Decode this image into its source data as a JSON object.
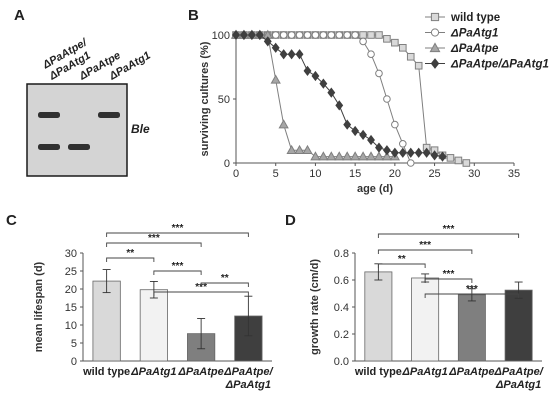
{
  "panels": {
    "A": {
      "letter": "A",
      "lane_labels": [
        {
          "lines": [
            "ΔPaAtpe/",
            "ΔPaAtg1"
          ]
        },
        {
          "lines": [
            "ΔPaAtpe"
          ]
        },
        {
          "lines": [
            "ΔPaAtg1"
          ]
        }
      ],
      "gel_label": "Ble",
      "bands": [
        {
          "lane": 0,
          "level": "upper"
        },
        {
          "lane": 0,
          "level": "lower"
        },
        {
          "lane": 1,
          "level": "lower"
        },
        {
          "lane": 2,
          "level": "upper"
        }
      ]
    },
    "B": {
      "letter": "B"
    },
    "C": {
      "letter": "C"
    },
    "D": {
      "letter": "D"
    }
  },
  "chart_data": [
    {
      "panel": "B",
      "type": "line",
      "xlabel": "age (d)",
      "ylabel": "surviving cultures (%)",
      "xlim": [
        0,
        35
      ],
      "ylim": [
        0,
        100
      ],
      "xticks": [
        0,
        5,
        10,
        15,
        20,
        25,
        30,
        35
      ],
      "yticks": [
        0,
        50,
        100
      ],
      "legend_position": "right",
      "series": [
        {
          "name": "wild type",
          "marker": "square",
          "color": "#7f7f7f",
          "fill": "#d9d9d9",
          "x": [
            0,
            1,
            2,
            3,
            4,
            5,
            6,
            7,
            8,
            9,
            10,
            11,
            12,
            13,
            14,
            15,
            16,
            17,
            18,
            19,
            20,
            21,
            22,
            23,
            24,
            25,
            26,
            27,
            28,
            29
          ],
          "y": [
            100,
            100,
            100,
            100,
            100,
            100,
            100,
            100,
            100,
            100,
            100,
            100,
            100,
            100,
            100,
            100,
            100,
            100,
            100,
            97,
            94,
            90,
            83,
            76,
            12,
            10,
            6,
            4,
            2,
            0
          ]
        },
        {
          "name": "ΔPaAtg1",
          "marker": "circle",
          "color": "#7f7f7f",
          "fill": "#ffffff",
          "x": [
            0,
            1,
            2,
            3,
            4,
            5,
            6,
            7,
            8,
            9,
            10,
            11,
            12,
            13,
            14,
            15,
            16,
            17,
            18,
            19,
            20,
            21,
            22
          ],
          "y": [
            100,
            100,
            100,
            100,
            100,
            100,
            100,
            100,
            100,
            100,
            100,
            100,
            100,
            100,
            100,
            100,
            95,
            85,
            70,
            50,
            30,
            15,
            0
          ]
        },
        {
          "name": "ΔPaAtpe",
          "marker": "triangle",
          "color": "#7f7f7f",
          "fill": "#a6a6a6",
          "x": [
            0,
            1,
            2,
            3,
            4,
            5,
            6,
            7,
            8,
            9,
            10,
            11,
            12,
            13,
            14,
            15,
            16,
            17,
            18,
            19,
            20
          ],
          "y": [
            100,
            100,
            100,
            100,
            100,
            65,
            30,
            10,
            10,
            10,
            5,
            5,
            5,
            5,
            5,
            5,
            5,
            5,
            5,
            5,
            5
          ]
        },
        {
          "name": "ΔPaAtpe/ΔPaAtg1",
          "marker": "diamond",
          "color": "#3f3f3f",
          "fill": "#3f3f3f",
          "x": [
            0,
            1,
            2,
            3,
            4,
            5,
            6,
            7,
            8,
            9,
            10,
            11,
            12,
            13,
            14,
            15,
            16,
            17,
            18,
            19,
            20,
            21,
            22,
            23,
            24,
            25,
            26
          ],
          "y": [
            100,
            100,
            100,
            100,
            95,
            90,
            85,
            85,
            85,
            72,
            68,
            62,
            55,
            45,
            30,
            25,
            22,
            18,
            12,
            10,
            8,
            8,
            8,
            8,
            8,
            6,
            5
          ]
        }
      ]
    },
    {
      "panel": "C",
      "type": "bar",
      "xlabel": "",
      "ylabel": "mean lifespan (d)",
      "ylim": [
        0,
        30
      ],
      "yticks": [
        0,
        5,
        10,
        15,
        20,
        25,
        30
      ],
      "categories": [
        [
          "wild type"
        ],
        [
          "ΔPaAtg1"
        ],
        [
          "ΔPaAtpe"
        ],
        [
          "ΔPaAtpe/",
          "ΔPaAtg1"
        ]
      ],
      "values": [
        22.2,
        19.8,
        7.6,
        12.5
      ],
      "errors": [
        3.2,
        2.3,
        4.2,
        5.5
      ],
      "colors": [
        "#d9d9d9",
        "#f2f2f2",
        "#7f7f7f",
        "#3f3f3f"
      ],
      "significance": [
        {
          "from": 0,
          "to": 1,
          "label": "**"
        },
        {
          "from": 1,
          "to": 2,
          "label": "***"
        },
        {
          "from": 0,
          "to": 2,
          "label": "***"
        },
        {
          "from": 1,
          "to": 3,
          "label": "***"
        },
        {
          "from": 0,
          "to": 3,
          "label": "***"
        },
        {
          "from": 2,
          "to": 3,
          "label": "**"
        }
      ]
    },
    {
      "panel": "D",
      "type": "bar",
      "xlabel": "",
      "ylabel": "growth rate (cm/d)",
      "ylim": [
        0,
        0.8
      ],
      "yticks": [
        0,
        0.2,
        0.4,
        0.6,
        0.8
      ],
      "categories": [
        [
          "wild type"
        ],
        [
          "ΔPaAtg1"
        ],
        [
          "ΔPaAtpe"
        ],
        [
          "ΔPaAtpe/",
          "ΔPaAtg1"
        ]
      ],
      "values": [
        0.66,
        0.615,
        0.49,
        0.525
      ],
      "errors": [
        0.06,
        0.03,
        0.045,
        0.06
      ],
      "colors": [
        "#d9d9d9",
        "#f2f2f2",
        "#7f7f7f",
        "#3f3f3f"
      ],
      "significance": [
        {
          "from": 0,
          "to": 3,
          "label": "***"
        },
        {
          "from": 0,
          "to": 2,
          "label": "***"
        },
        {
          "from": 0,
          "to": 1,
          "label": "**"
        },
        {
          "from": 1,
          "to": 2,
          "label": "***"
        },
        {
          "from": 1,
          "to": 3,
          "label": "***"
        }
      ]
    }
  ]
}
